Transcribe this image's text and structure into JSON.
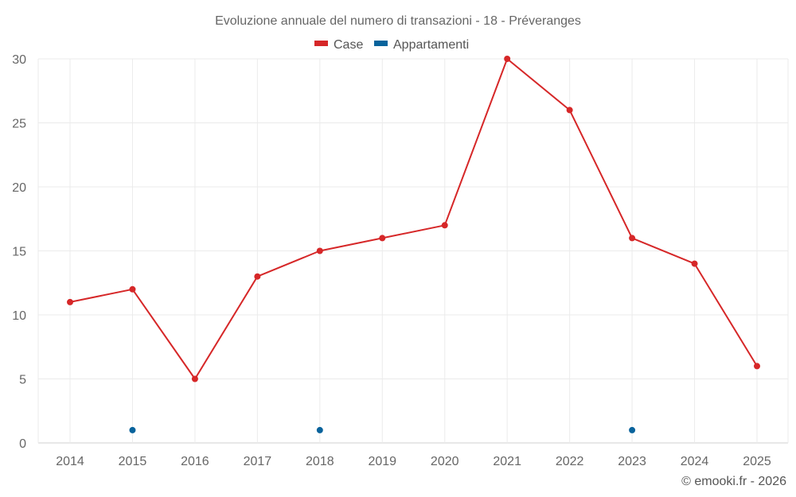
{
  "chart_data": {
    "type": "line",
    "title": "Evoluzione annuale del numero di transazioni - 18 - Préveranges",
    "xlabel": "",
    "ylabel": "",
    "categories": [
      "2014",
      "2015",
      "2016",
      "2017",
      "2018",
      "2019",
      "2020",
      "2021",
      "2022",
      "2023",
      "2024",
      "2025"
    ],
    "series": [
      {
        "name": "Case",
        "color": "#d62728",
        "values": [
          11,
          12,
          5,
          13,
          15,
          16,
          17,
          30,
          26,
          16,
          14,
          6
        ]
      },
      {
        "name": "Appartamenti",
        "color": "#08639c",
        "values": [
          null,
          1,
          null,
          null,
          1,
          null,
          null,
          null,
          null,
          1,
          null,
          null
        ]
      }
    ],
    "ylim": [
      0,
      30
    ],
    "yticks": [
      0,
      5,
      10,
      15,
      20,
      25,
      30
    ],
    "grid": true,
    "legend_position": "top"
  },
  "legend": {
    "items": [
      {
        "label": "Case",
        "color": "#d62728"
      },
      {
        "label": "Appartamenti",
        "color": "#08639c"
      }
    ]
  },
  "credit": "© emooki.fr - 2026"
}
